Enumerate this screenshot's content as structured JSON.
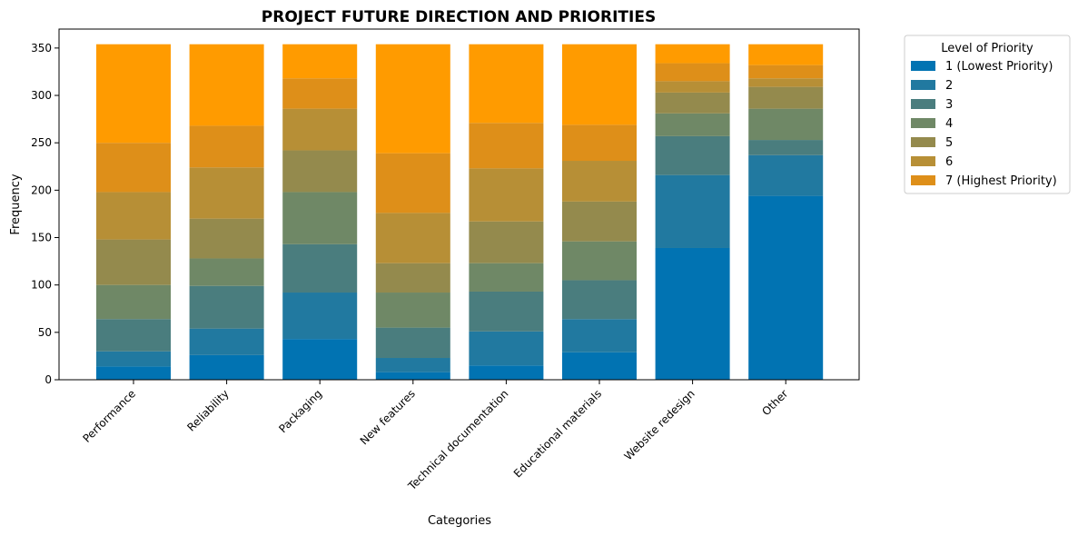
{
  "chart_data": {
    "type": "bar",
    "stacked": true,
    "title": "PROJECT FUTURE DIRECTION AND PRIORITIES",
    "xlabel": "Categories",
    "ylabel": "Frequency",
    "ylim": [
      0,
      370
    ],
    "yticks": [
      0,
      50,
      100,
      150,
      200,
      250,
      300,
      350
    ],
    "grid": false,
    "legend_title": "Level of Priority",
    "legend_position": "outside-top-right",
    "categories": [
      "Performance",
      "Reliability",
      "Packaging",
      "New features",
      "Technical documentation",
      "Educational materials",
      "Website redesign",
      "Other"
    ],
    "series": [
      {
        "name": "1 (Lowest Priority)",
        "color": "#0173b2",
        "values": [
          14,
          26,
          43,
          8,
          15,
          29,
          139,
          194
        ]
      },
      {
        "name": "2",
        "color": "#2179a0",
        "values": [
          16,
          28,
          49,
          15,
          36,
          35,
          77,
          43
        ]
      },
      {
        "name": "3",
        "color": "#4a7d7e",
        "values": [
          34,
          45,
          51,
          32,
          42,
          41,
          41,
          16
        ]
      },
      {
        "name": "4",
        "color": "#6f8866",
        "values": [
          36,
          29,
          55,
          37,
          30,
          41,
          24,
          33
        ]
      },
      {
        "name": "5",
        "color": "#948a4d",
        "values": [
          48,
          42,
          44,
          31,
          44,
          42,
          22,
          23
        ]
      },
      {
        "name": "6",
        "color": "#b78f36",
        "values": [
          50,
          54,
          44,
          53,
          56,
          43,
          12,
          9
        ]
      },
      {
        "name": "7 (Highest Priority)",
        "color": "#de8f19",
        "values": [
          52,
          44,
          32,
          63,
          48,
          38,
          19,
          14
        ]
      },
      {
        "name": "",
        "color": "#ff9b00",
        "values": [
          104,
          86,
          36,
          115,
          83,
          85,
          20,
          22
        ]
      }
    ]
  }
}
